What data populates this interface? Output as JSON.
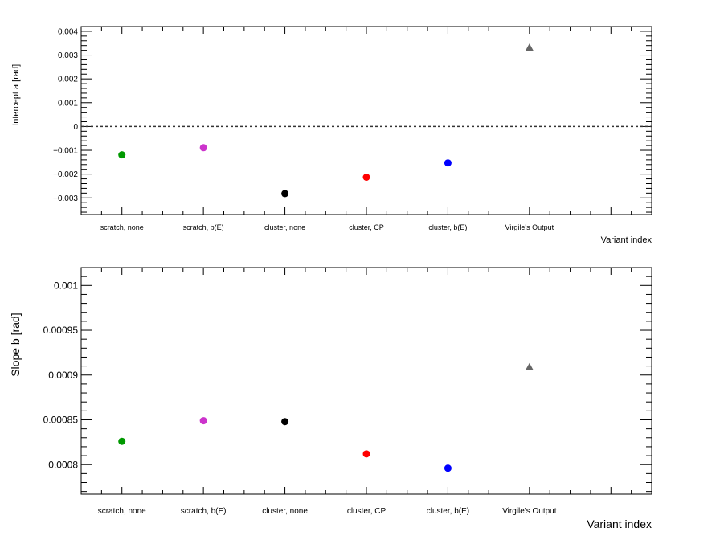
{
  "chart_data": [
    {
      "type": "scatter",
      "title": "",
      "xlabel": "Variant index",
      "ylabel": "Intercept  a  [rad]",
      "ylim": [
        -0.0037,
        0.0042
      ],
      "categories": [
        "scratch, none",
        "scratch, b(E)",
        "cluster, none",
        "cluster, CP",
        "cluster, b(E)",
        "Virgile's Output"
      ],
      "y_ticks": [
        {
          "value": 0.004,
          "label": "0.004"
        },
        {
          "value": 0.003,
          "label": "0.003"
        },
        {
          "value": 0.002,
          "label": "0.002"
        },
        {
          "value": 0.001,
          "label": "0.001"
        },
        {
          "value": 0,
          "label": "0"
        },
        {
          "value": -0.001,
          "label": "−0.001"
        },
        {
          "value": -0.002,
          "label": "−0.002"
        },
        {
          "value": -0.003,
          "label": "−0.003"
        }
      ],
      "reference_line": 0,
      "points": [
        {
          "category": "scratch, none",
          "y": -0.00119,
          "color": "#009900",
          "marker": "circle"
        },
        {
          "category": "scratch, b(E)",
          "y": -0.00089,
          "color": "#cc33cc",
          "marker": "circle"
        },
        {
          "category": "cluster, none",
          "y": -0.00282,
          "color": "#000000",
          "marker": "circle"
        },
        {
          "category": "cluster, CP",
          "y": -0.00213,
          "color": "#ff0000",
          "marker": "circle"
        },
        {
          "category": "cluster, b(E)",
          "y": -0.00153,
          "color": "#0000ff",
          "marker": "circle"
        },
        {
          "category": "Virgile's Output",
          "y": 0.00332,
          "color": "#666666",
          "marker": "triangle"
        }
      ]
    },
    {
      "type": "scatter",
      "title": "",
      "xlabel": "Variant index",
      "ylabel": "Slope  b  [rad]",
      "ylim": [
        0.000767,
        0.00102
      ],
      "categories": [
        "scratch, none",
        "scratch, b(E)",
        "cluster, none",
        "cluster, CP",
        "cluster, b(E)",
        "Virgile's Output"
      ],
      "y_ticks": [
        {
          "value": 0.001,
          "label": "0.001"
        },
        {
          "value": 0.00095,
          "label": "0.00095"
        },
        {
          "value": 0.0009,
          "label": "0.0009"
        },
        {
          "value": 0.00085,
          "label": "0.00085"
        },
        {
          "value": 0.0008,
          "label": "0.0008"
        }
      ],
      "points": [
        {
          "category": "scratch, none",
          "y": 0.000826,
          "color": "#009900",
          "marker": "circle"
        },
        {
          "category": "scratch, b(E)",
          "y": 0.000849,
          "color": "#cc33cc",
          "marker": "circle"
        },
        {
          "category": "cluster, none",
          "y": 0.000848,
          "color": "#000000",
          "marker": "circle"
        },
        {
          "category": "cluster, CP",
          "y": 0.000812,
          "color": "#ff0000",
          "marker": "circle"
        },
        {
          "category": "cluster, b(E)",
          "y": 0.000796,
          "color": "#0000ff",
          "marker": "circle"
        },
        {
          "category": "Virgile's Output",
          "y": 0.000909,
          "color": "#666666",
          "marker": "triangle"
        }
      ]
    }
  ]
}
